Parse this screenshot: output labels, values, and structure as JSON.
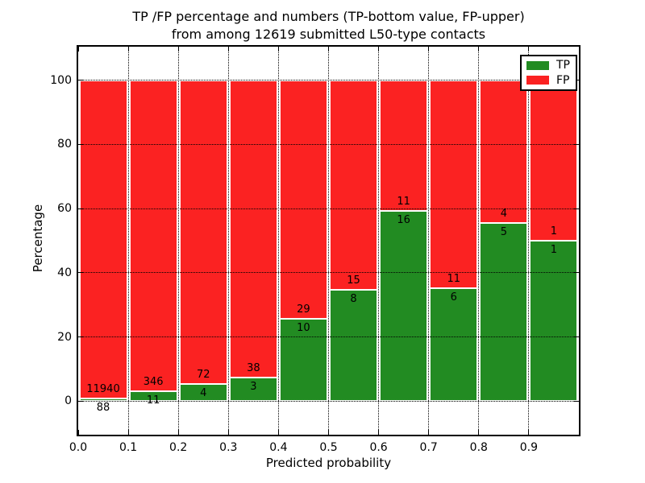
{
  "colors": {
    "tp": "#228B22",
    "fp": "#FB2222",
    "text": "#000000",
    "background": "#FFFFFF"
  },
  "chart_data": {
    "type": "bar",
    "stacked": true,
    "title": "TP /FP percentage and numbers (TP-bottom value, FP-upper)\nfrom among 12619 submitted L50-type contacts",
    "title_lines": [
      "TP /FP percentage and numbers (TP-bottom value, FP-upper)",
      "from among 12619 submitted L50-type contacts"
    ],
    "xlabel": "Predicted probability",
    "ylabel": "Percentage",
    "xlim": [
      0.0,
      1.0
    ],
    "ylim": [
      -10.5,
      110.5
    ],
    "grid": "dotted",
    "legend_position": "upper right",
    "total_submitted": "12619",
    "categories": [
      "0.0-0.1",
      "0.1-0.2",
      "0.2-0.3",
      "0.3-0.4",
      "0.4-0.5",
      "0.5-0.6",
      "0.6-0.7",
      "0.7-0.8",
      "0.8-0.9",
      "0.9-1.0"
    ],
    "x_ticks": [
      "0.0",
      "0.1",
      "0.2",
      "0.3",
      "0.4",
      "0.5",
      "0.6",
      "0.7",
      "0.8",
      "0.9"
    ],
    "y_ticks": [
      "0",
      "20",
      "40",
      "60",
      "80",
      "100"
    ],
    "series": [
      {
        "name": "TP",
        "color": "#228B22",
        "counts": [
          88,
          11,
          4,
          3,
          10,
          8,
          16,
          6,
          5,
          1
        ],
        "pct": [
          0.73,
          3.08,
          5.26,
          7.32,
          25.64,
          34.78,
          59.26,
          35.29,
          55.56,
          50.0
        ]
      },
      {
        "name": "FP",
        "color": "#FB2222",
        "counts": [
          11940,
          346,
          72,
          38,
          29,
          15,
          11,
          11,
          4,
          1
        ],
        "pct": [
          99.27,
          96.92,
          94.74,
          92.68,
          74.36,
          65.22,
          40.74,
          64.71,
          44.44,
          50.0
        ]
      }
    ]
  }
}
